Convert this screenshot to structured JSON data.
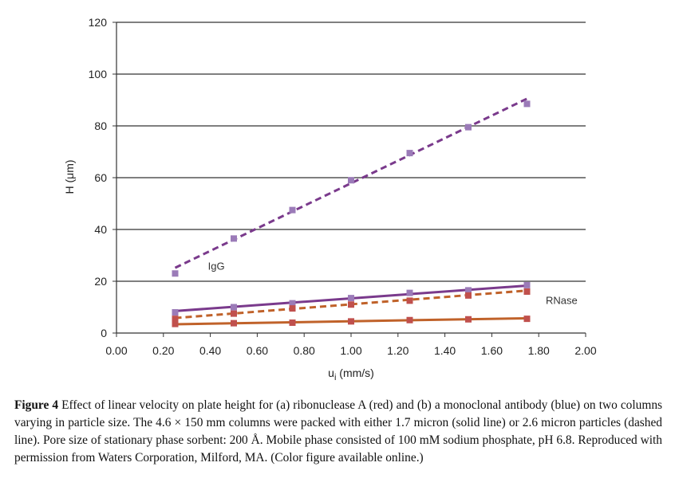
{
  "colors": {
    "purple": "#7a3a8c",
    "purple_marker": "#9b7bb8",
    "orange": "#c0622a",
    "red_marker": "#c0504d",
    "grid": "#333333"
  },
  "caption": {
    "label": "Figure 4",
    "text": "Effect of linear velocity on plate height for (a) ribonuclease A (red) and (b) a monoclonal antibody (blue) on two columns varying in particle size. The 4.6 × 150 mm columns were packed with either 1.7 micron (solid line) or 2.6 micron particles (dashed line). Pore size of stationary phase sorbent: 200 Å. Mobile phase consisted of 100 mM sodium phosphate, pH 6.8. Reproduced with permission from Waters Corporation, Milford, MA. (Color figure available online.)"
  },
  "chart_data": {
    "type": "scatter",
    "xlabel": "u",
    "xlabel_sub": "i",
    "xlabel_unit": " (mm/s)",
    "ylabel": "H (μm)",
    "xlim": [
      0,
      2
    ],
    "ylim": [
      0,
      120
    ],
    "xticks": [
      "0.00",
      "0.20",
      "0.40",
      "0.60",
      "0.80",
      "1.00",
      "1.20",
      "1.40",
      "1.60",
      "1.80",
      "2.00"
    ],
    "yticks": [
      "0",
      "20",
      "40",
      "60",
      "80",
      "100",
      "120"
    ],
    "grid": "horizontal",
    "annotations": [
      {
        "text": "IgG",
        "x": 0.39,
        "y": 24.5
      },
      {
        "text": "RNase",
        "x": 1.83,
        "y": 11.2
      }
    ],
    "series": [
      {
        "group": "IgG",
        "line": "dashed",
        "color": "#7a3a8c",
        "marker_color": "#9b7bb8",
        "x": [
          0.25,
          0.5,
          0.75,
          1.0,
          1.25,
          1.5,
          1.75
        ],
        "y": [
          23,
          36.5,
          47.5,
          59,
          69.5,
          79.5,
          88.5
        ],
        "fit": [
          [
            0.25,
            25.2
          ],
          [
            1.75,
            90.5
          ]
        ]
      },
      {
        "group": "IgG",
        "line": "solid",
        "color": "#7a3a8c",
        "marker_color": "#9b7bb8",
        "x": [
          0.25,
          0.5,
          0.75,
          1.0,
          1.25,
          1.5,
          1.75
        ],
        "y": [
          8,
          10,
          11.5,
          13.5,
          15.5,
          16.5,
          18.5
        ],
        "fit": [
          [
            0.25,
            8.5
          ],
          [
            1.75,
            18.3
          ]
        ]
      },
      {
        "group": "RNase",
        "line": "dashed",
        "color": "#c0622a",
        "marker_color": "#c0504d",
        "x": [
          0.25,
          0.5,
          0.75,
          1.0,
          1.25,
          1.5,
          1.75
        ],
        "y": [
          5.5,
          7.5,
          9.5,
          11,
          12.5,
          14.5,
          16
        ],
        "fit": [
          [
            0.25,
            5.8
          ],
          [
            1.75,
            16.4
          ]
        ]
      },
      {
        "group": "RNase",
        "line": "solid",
        "color": "#c0622a",
        "marker_color": "#c0504d",
        "x": [
          0.25,
          0.5,
          0.75,
          1.0,
          1.25,
          1.5,
          1.75
        ],
        "y": [
          3.5,
          3.8,
          4.0,
          4.5,
          5.0,
          5.3,
          5.5
        ],
        "fit": [
          [
            0.25,
            3.4
          ],
          [
            1.75,
            5.7
          ]
        ]
      }
    ]
  }
}
